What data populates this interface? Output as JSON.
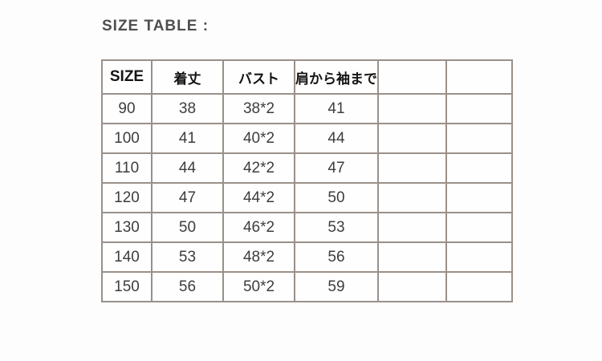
{
  "page": {
    "background": "#fdfdfd"
  },
  "title": "SIZE TABLE :",
  "chart_data": {
    "type": "table",
    "title": "SIZE TABLE :",
    "columns": [
      "SIZE",
      "着丈",
      "バスト",
      "肩から袖まで",
      "",
      ""
    ],
    "rows": [
      [
        "90",
        "38",
        "38*2",
        "41",
        "",
        ""
      ],
      [
        "100",
        "41",
        "40*2",
        "44",
        "",
        ""
      ],
      [
        "110",
        "44",
        "42*2",
        "47",
        "",
        ""
      ],
      [
        "120",
        "47",
        "44*2",
        "50",
        "",
        ""
      ],
      [
        "130",
        "50",
        "46*2",
        "53",
        "",
        ""
      ],
      [
        "140",
        "53",
        "48*2",
        "56",
        "",
        ""
      ],
      [
        "150",
        "56",
        "50*2",
        "59",
        "",
        ""
      ]
    ],
    "colors": {
      "border": "#9a9089",
      "header_text": "#141414",
      "cell_text": "#3d3d3d",
      "title_text": "#4f4f4f"
    }
  }
}
